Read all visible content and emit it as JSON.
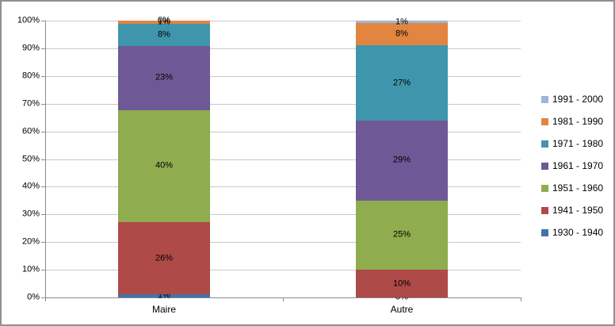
{
  "chart_data": {
    "type": "bar",
    "subtype": "stacked-100-percent-column",
    "categories": [
      "Maire",
      "Autre"
    ],
    "series": [
      {
        "name": "1930 - 1940",
        "color": "#4273A8",
        "values": [
          1,
          0
        ],
        "labels": [
          "1%",
          "0%"
        ]
      },
      {
        "name": "1941 - 1950",
        "color": "#AE4A48",
        "values": [
          26,
          10
        ],
        "labels": [
          "26%",
          "10%"
        ]
      },
      {
        "name": "1951 - 1960",
        "color": "#8FAC4E",
        "values": [
          40,
          25
        ],
        "labels": [
          "40%",
          "25%"
        ]
      },
      {
        "name": "1961 - 1970",
        "color": "#6E5996",
        "values": [
          23,
          29
        ],
        "labels": [
          "23%",
          "29%"
        ]
      },
      {
        "name": "1971 - 1980",
        "color": "#3F96AC",
        "values": [
          8,
          27
        ],
        "labels": [
          "8%",
          "27%"
        ]
      },
      {
        "name": "1981 - 1990",
        "color": "#E28540",
        "values": [
          1,
          8
        ],
        "labels": [
          "1%",
          "8%"
        ]
      },
      {
        "name": "1991 - 2000",
        "color": "#9FB6D9",
        "values": [
          0,
          1
        ],
        "labels": [
          "0%",
          "1%"
        ]
      }
    ],
    "y_axis": {
      "min": 0,
      "max": 100,
      "tick_labels": [
        "0%",
        "10%",
        "20%",
        "30%",
        "40%",
        "50%",
        "60%",
        "70%",
        "80%",
        "90%",
        "100%"
      ]
    },
    "legend": {
      "position": "right",
      "items": [
        "1991 - 2000",
        "1981 - 1990",
        "1971 - 1980",
        "1961 - 1970",
        "1951 - 1960",
        "1941 - 1950",
        "1930 - 1940"
      ]
    },
    "grid": true,
    "colors": {
      "gridline": "#C9C9C9",
      "axis": "#8C8C8C",
      "text": "#000000",
      "background": "#FFFFFF",
      "frame_border": "#8F8F8F"
    }
  }
}
